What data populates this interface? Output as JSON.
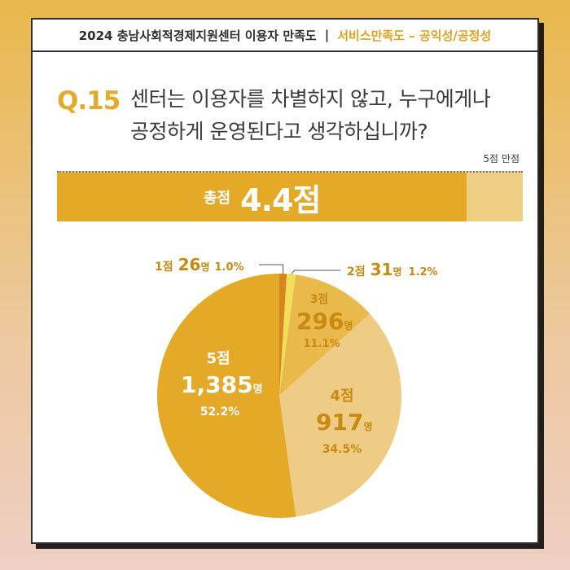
{
  "header": {
    "left": "2024 충남사회적경제지원센터 이용자 만족도",
    "separator": "|",
    "right": "서비스만족도 – 공익성/공정성"
  },
  "question": {
    "number": "Q.15",
    "text_line1": "센터는 이용자를 차별하지 않고, 누구에게나",
    "text_line2": "공정하게 운영된다고 생각하십니까?"
  },
  "scale_note": "5점 만점",
  "total": {
    "label": "총점",
    "score_text": "4.4점",
    "score": 4.4,
    "max": 5
  },
  "colors": {
    "accent": "#e4a926",
    "light": "#eecf85",
    "dark_text": "#c88a10",
    "score1": "#d9861c",
    "score2": "#f1df5a",
    "score3": "#e9b94c",
    "score4": "#efcc85",
    "score5": "#e4a926"
  },
  "chart_data": {
    "type": "pie",
    "slices": [
      {
        "label": "1점",
        "count": 26,
        "count_text": "26",
        "unit": "명",
        "percent": 1.0,
        "percent_text": "1.0%"
      },
      {
        "label": "2점",
        "count": 31,
        "count_text": "31",
        "unit": "명",
        "percent": 1.2,
        "percent_text": "1.2%"
      },
      {
        "label": "3점",
        "count": 296,
        "count_text": "296",
        "unit": "명",
        "percent": 11.1,
        "percent_text": "11.1%"
      },
      {
        "label": "4점",
        "count": 917,
        "count_text": "917",
        "unit": "명",
        "percent": 34.5,
        "percent_text": "34.5%"
      },
      {
        "label": "5점",
        "count": 1385,
        "count_text": "1,385",
        "unit": "명",
        "percent": 52.2,
        "percent_text": "52.2%"
      }
    ]
  }
}
